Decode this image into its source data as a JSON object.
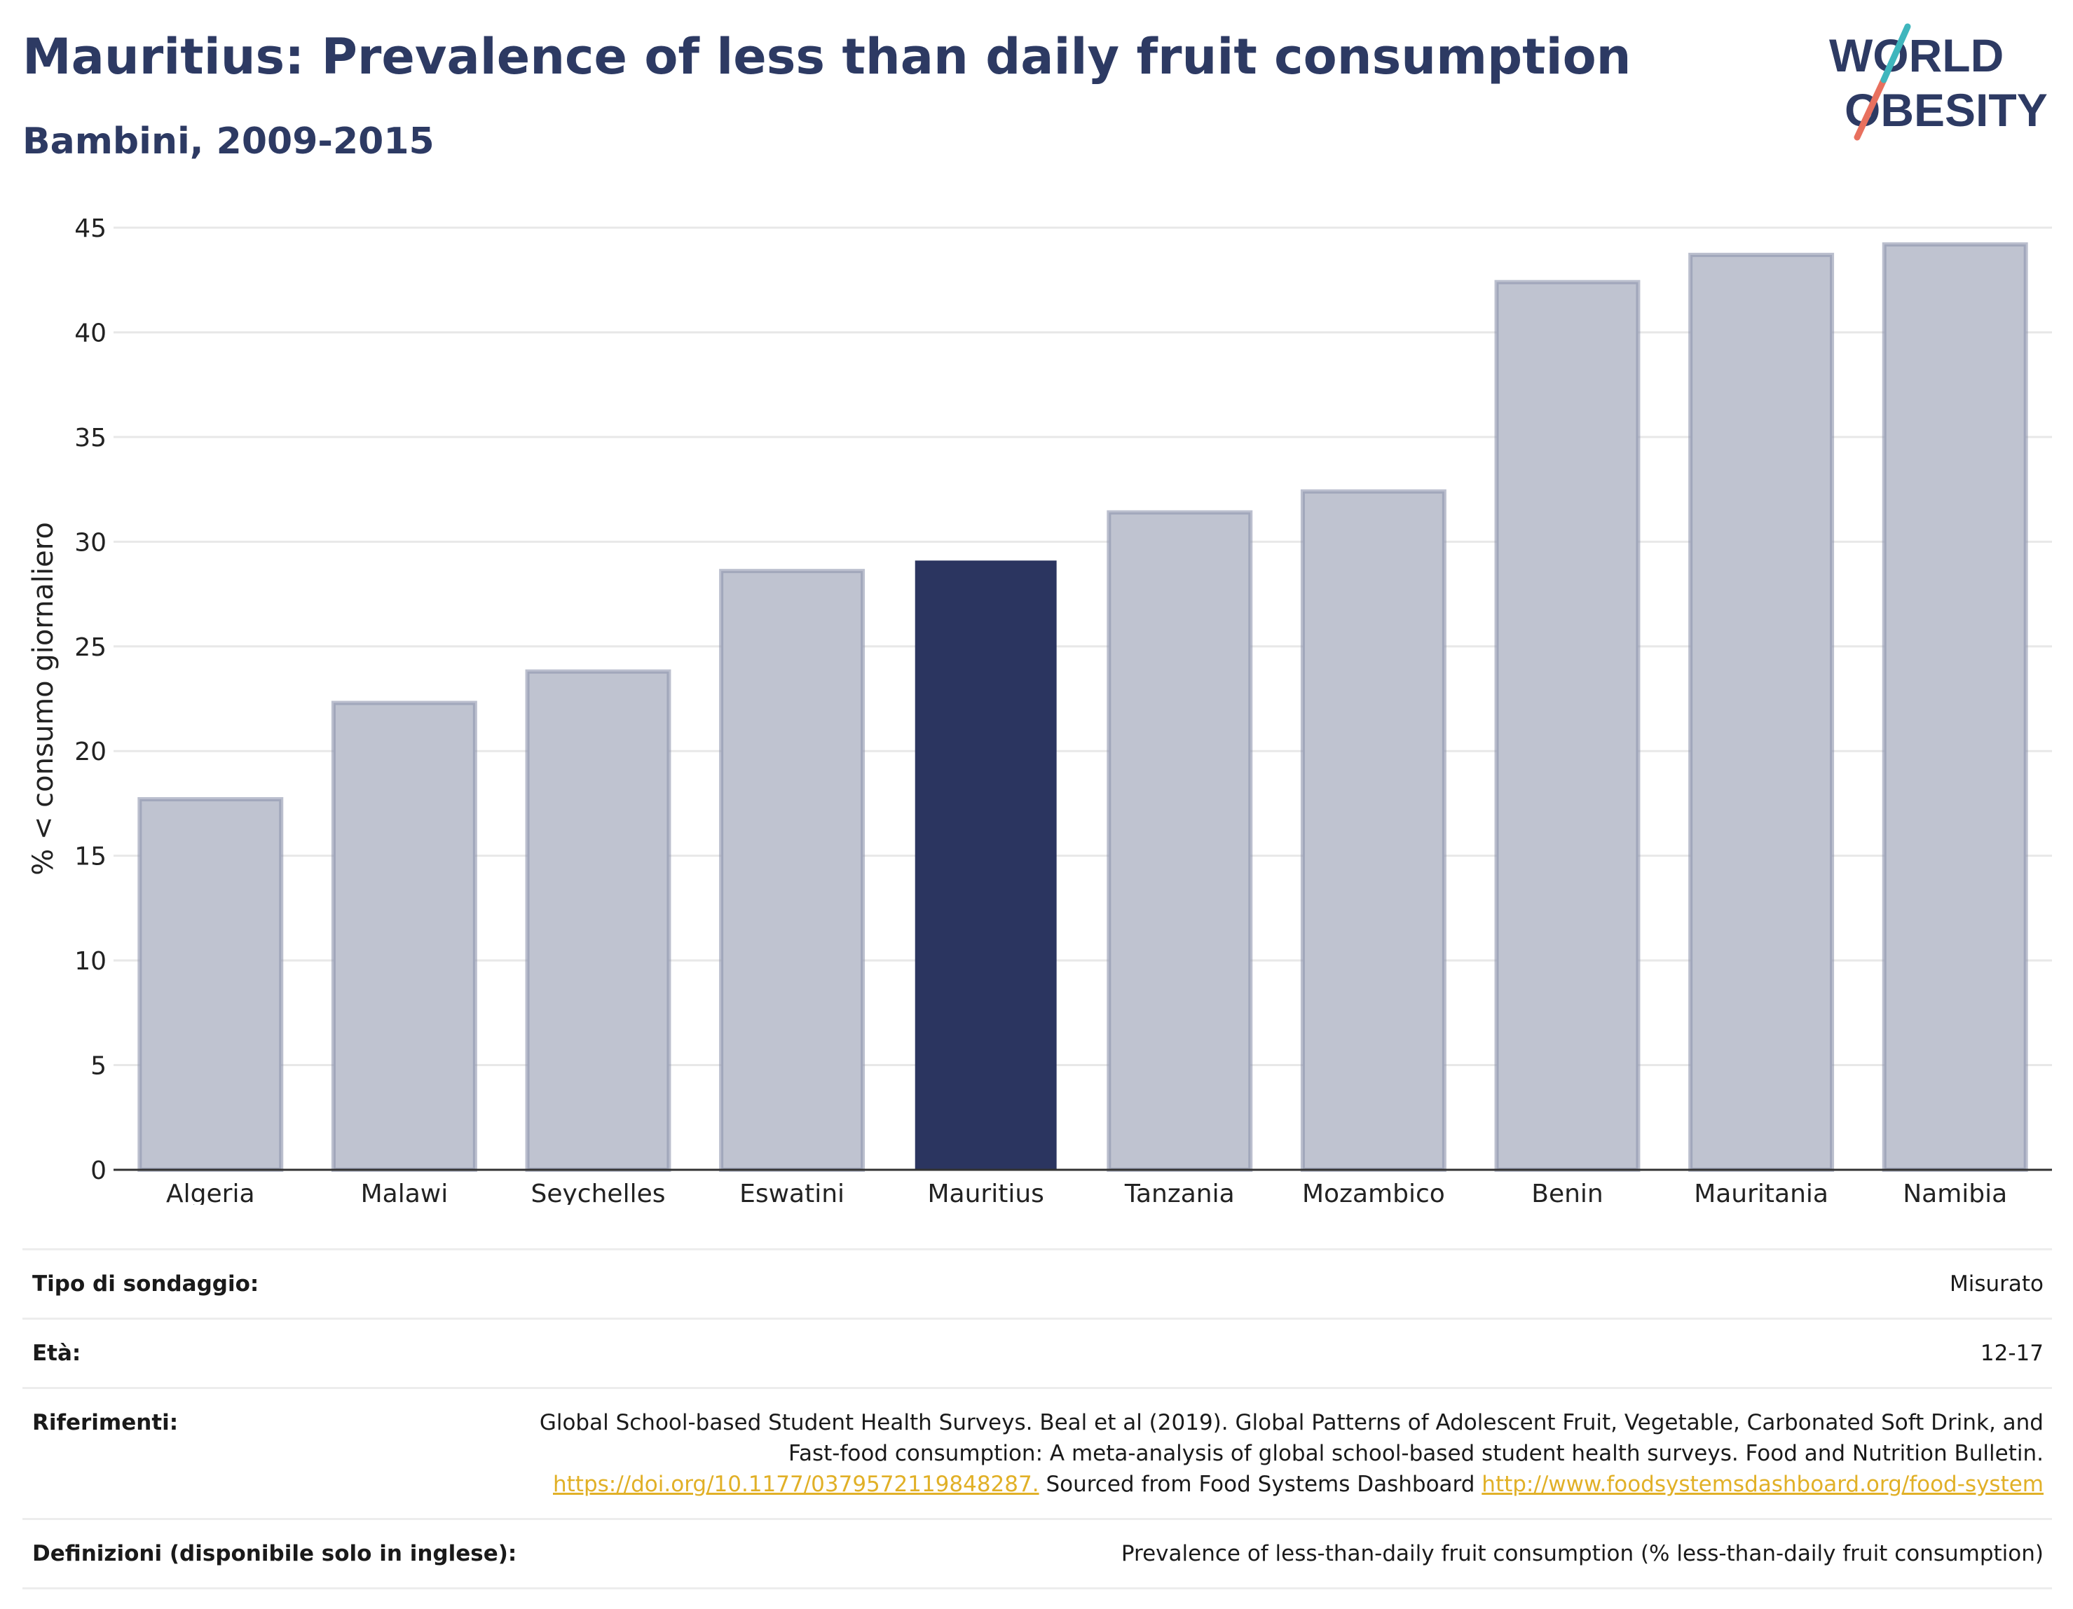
{
  "header": {
    "title": "Mauritius: Prevalence of less than daily fruit consumption",
    "subtitle": "Bambini, 2009-2015",
    "logo": {
      "line1": "WORLD",
      "line2": "OBESITY"
    }
  },
  "chart_data": {
    "type": "bar",
    "categories": [
      "Algeria",
      "Malawi",
      "Seychelles",
      "Eswatini",
      "Mauritius",
      "Tanzania",
      "Mozambico",
      "Benin",
      "Mauritania",
      "Namibia"
    ],
    "values": [
      17.7,
      22.3,
      23.8,
      28.6,
      29.1,
      31.4,
      32.4,
      42.4,
      43.7,
      44.2
    ],
    "highlight": "Mauritius",
    "ylabel": "% < consumo giornaliero",
    "ylim": [
      0,
      45
    ],
    "yticks": [
      0,
      5,
      10,
      15,
      20,
      25,
      30,
      35,
      40,
      45
    ],
    "grid": true,
    "colors": {
      "bar": "#bfc3d0",
      "bar_border": "#8e94ad",
      "highlight": "#2b3560",
      "grid": "#e8e8e8",
      "axis": "#333333"
    }
  },
  "info": {
    "survey_type": {
      "label": "Tipo di sondaggio:",
      "value": "Misurato"
    },
    "age": {
      "label": "Età:",
      "value": "12-17"
    },
    "references": {
      "label": "Riferimenti:",
      "text": "Global School-based Student Health Surveys. Beal et al (2019). Global Patterns of Adolescent Fruit, Vegetable, Carbonated Soft Drink, and Fast-food consumption: A meta-analysis of global school-based student health surveys. Food and Nutrition Bulletin.",
      "doi_link": "https://doi.org/10.1177/0379572119848287.",
      "source_text": "Sourced from Food Systems Dashboard",
      "source_link": "http://www.foodsystemsdashboard.org/food-system"
    },
    "definitions": {
      "label": "Definizioni (disponibile solo in inglese):",
      "value": "Prevalence of less-than-daily fruit consumption (% less-than-daily fruit consumption)"
    }
  }
}
